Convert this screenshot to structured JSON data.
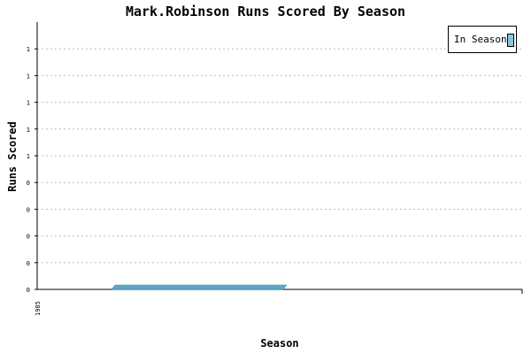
{
  "chart_data": {
    "type": "area",
    "title": "Mark.Robinson Runs Scored By Season",
    "xlabel": "Season",
    "ylabel": "Runs Scored",
    "x_tick_labels": [
      "1985"
    ],
    "y_tick_labels": [
      "0",
      "0",
      "0",
      "0",
      "0",
      "1",
      "1",
      "1",
      "1",
      "1"
    ],
    "ylim": [
      0,
      1
    ],
    "grid": true,
    "legend_position": "top-right",
    "series": [
      {
        "name": "In Season",
        "x": [
          1985
        ],
        "values": [
          0
        ],
        "color": "#5aa7c6"
      }
    ]
  }
}
